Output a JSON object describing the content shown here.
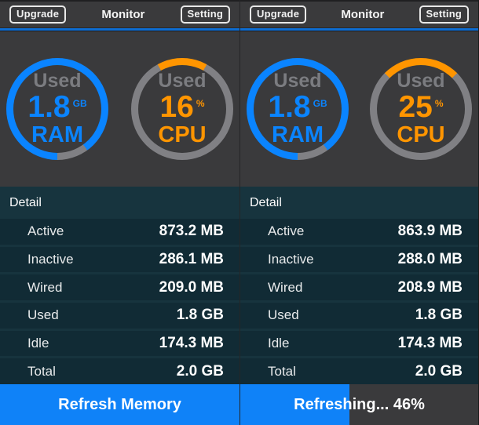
{
  "colors": {
    "background": "#3a3a3c",
    "accent_blue": "#0a84ff",
    "accent_orange": "#ff9500",
    "ring_gray": "#808084",
    "detail_bg": "#17343e",
    "row_bg": "#112b35",
    "footer_blue": "#0f82f8"
  },
  "panels": [
    {
      "nav": {
        "upgrade_label": "Upgrade",
        "title": "Monitor",
        "setting_label": "Setting"
      },
      "ram_gauge": {
        "top_label": "Used",
        "value": "1.8",
        "unit": "GB",
        "caption": "RAM",
        "percent": 90
      },
      "cpu_gauge": {
        "top_label": "Used",
        "value": "16",
        "unit": "%",
        "caption": "CPU",
        "percent": 16
      },
      "detail": {
        "header": "Detail",
        "rows": [
          {
            "label": "Active",
            "value": "873.2 MB"
          },
          {
            "label": "Inactive",
            "value": "286.1 MB"
          },
          {
            "label": "Wired",
            "value": "209.0 MB"
          },
          {
            "label": "Used",
            "value": "1.8 GB"
          },
          {
            "label": "Idle",
            "value": "174.3 MB"
          },
          {
            "label": "Total",
            "value": "2.0 GB"
          }
        ]
      },
      "footer": {
        "label": "Refresh Memory",
        "progress_percent": 100
      }
    },
    {
      "nav": {
        "upgrade_label": "Upgrade",
        "title": "Monitor",
        "setting_label": "Setting"
      },
      "ram_gauge": {
        "top_label": "Used",
        "value": "1.8",
        "unit": "GB",
        "caption": "RAM",
        "percent": 90
      },
      "cpu_gauge": {
        "top_label": "Used",
        "value": "25",
        "unit": "%",
        "caption": "CPU",
        "percent": 25
      },
      "detail": {
        "header": "Detail",
        "rows": [
          {
            "label": "Active",
            "value": "863.9 MB"
          },
          {
            "label": "Inactive",
            "value": "288.0 MB"
          },
          {
            "label": "Wired",
            "value": "208.9 MB"
          },
          {
            "label": "Used",
            "value": "1.8 GB"
          },
          {
            "label": "Idle",
            "value": "174.3 MB"
          },
          {
            "label": "Total",
            "value": "2.0 GB"
          }
        ]
      },
      "footer": {
        "label": "Refreshing... 46%",
        "progress_percent": 46
      }
    }
  ]
}
